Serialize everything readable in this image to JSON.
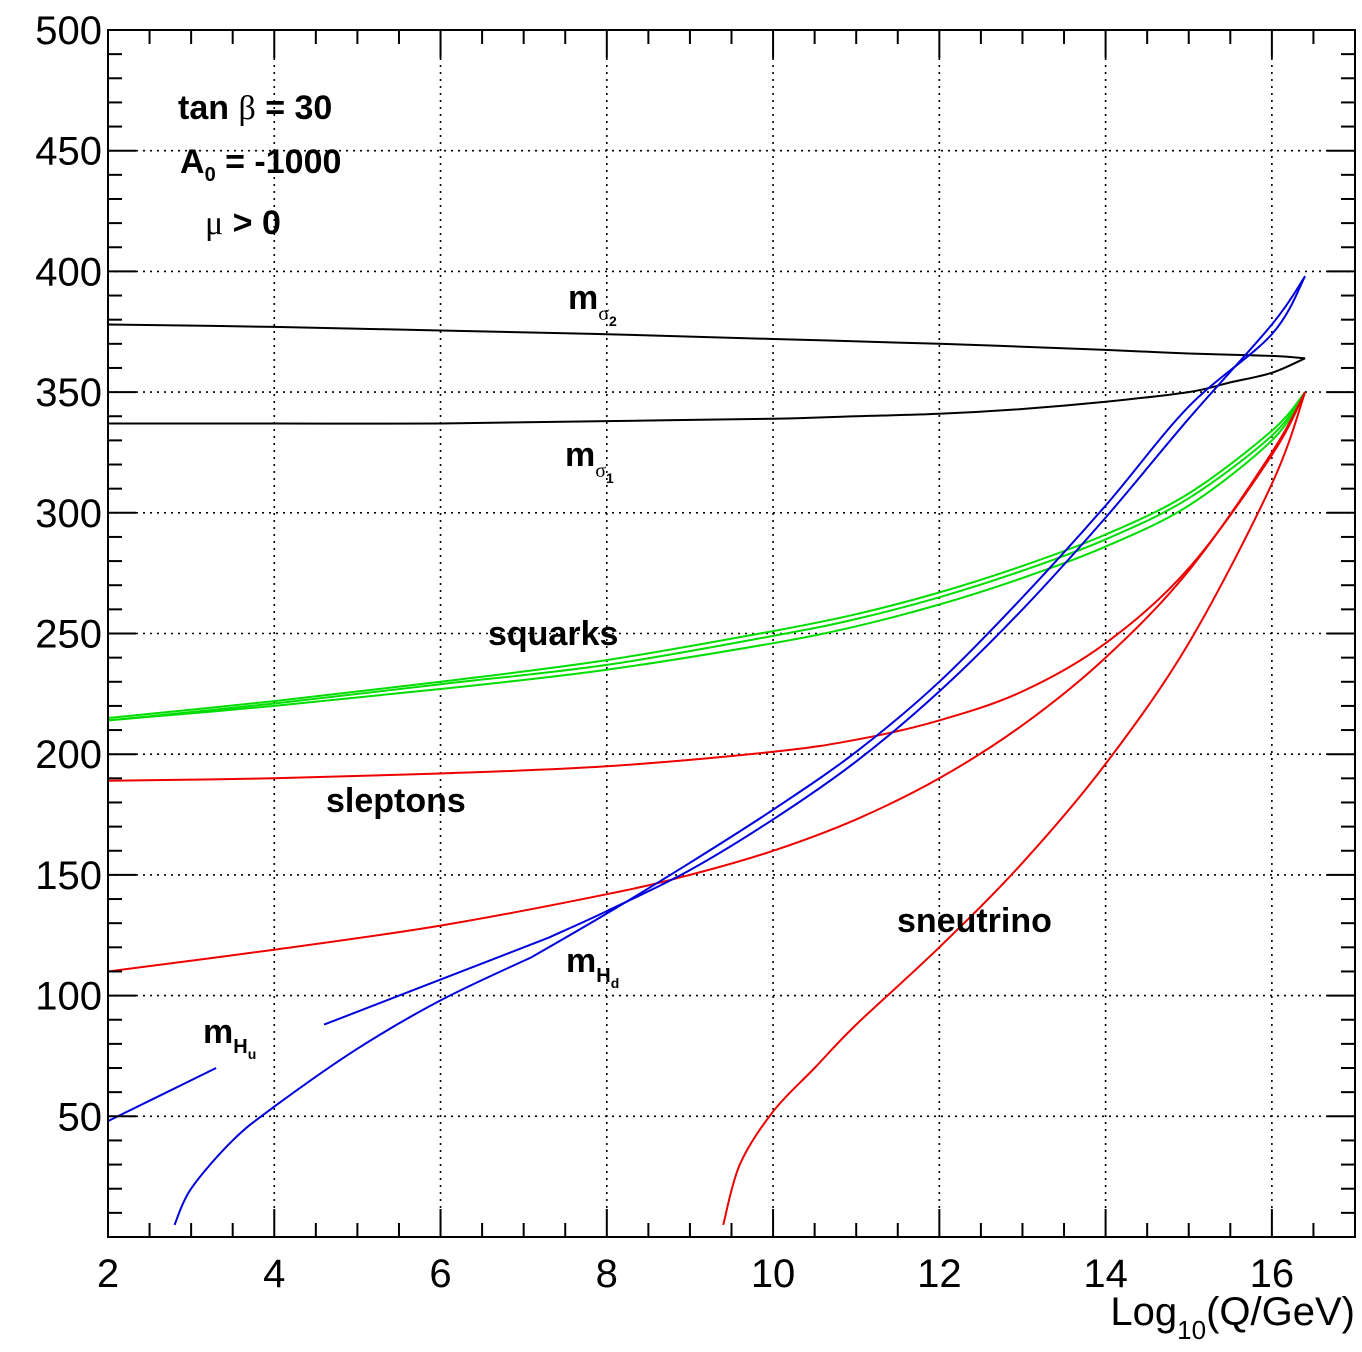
{
  "chart_data": {
    "type": "line",
    "title": "",
    "xlabel": "Log",
    "xlabel_sub": "10",
    "xlabel_tail": "(Q/GeV)",
    "ylabel": "",
    "xlim": [
      2,
      17
    ],
    "ylim": [
      0,
      500
    ],
    "x_ticks": [
      2,
      4,
      6,
      8,
      10,
      12,
      14,
      16
    ],
    "y_ticks": [
      50,
      100,
      150,
      200,
      250,
      300,
      350,
      400,
      450,
      500
    ],
    "grid": true,
    "params": {
      "line1_a": "tan ",
      "line1_beta": "β",
      "line1_b": " = 30",
      "line2_a": "A",
      "line2_sub": "0",
      "line2_b": " = -1000",
      "line3_mu": "μ",
      "line3_b": " > 0"
    },
    "labels": {
      "m": "m",
      "sigma": "σ",
      "sub2": "2",
      "sub1": "1",
      "H": "H",
      "u": "u",
      "d": "d",
      "squarks": "squarks",
      "sleptons": "sleptons",
      "sneutrino": "sneutrino"
    },
    "colors": {
      "sigma": "#000000",
      "squarks": "#00dd00",
      "sleptons": "#ee0000",
      "higgs": "#0000dd"
    },
    "series": [
      {
        "group": "sigma",
        "x": [
          2,
          4,
          6,
          8,
          10,
          12,
          14,
          15,
          16,
          16.4
        ],
        "y": [
          378,
          377,
          375.5,
          374,
          372,
          370,
          367.5,
          366,
          365,
          364
        ]
      },
      {
        "group": "sigma",
        "x": [
          2,
          4,
          6,
          8,
          10,
          11,
          12,
          13,
          14,
          15,
          15.5,
          16,
          16.4
        ],
        "y": [
          337,
          337,
          337,
          338,
          339,
          340,
          341,
          343,
          346,
          350,
          354,
          358,
          364
        ]
      },
      {
        "group": "squarks",
        "x": [
          2,
          4,
          6,
          8,
          10,
          11,
          12,
          13,
          14,
          15,
          16,
          16.4
        ],
        "y": [
          214,
          220,
          227,
          235,
          246,
          253,
          262,
          273,
          286,
          303,
          330,
          350
        ]
      },
      {
        "group": "squarks",
        "x": [
          2,
          4,
          6,
          8,
          10,
          11,
          12,
          13,
          14,
          15,
          16,
          16.4
        ],
        "y": [
          214,
          221,
          229,
          237,
          249,
          256,
          265,
          276,
          289,
          306,
          332,
          350
        ]
      },
      {
        "group": "squarks",
        "x": [
          2,
          4,
          6,
          8,
          10,
          11,
          12,
          13,
          14,
          15,
          16,
          16.4
        ],
        "y": [
          215,
          222,
          230,
          239,
          251,
          258,
          267,
          278,
          291,
          308,
          334,
          350
        ]
      },
      {
        "group": "sleptons",
        "x": [
          2,
          4,
          6,
          8,
          10,
          11,
          12,
          13,
          14,
          15,
          16,
          16.4
        ],
        "y": [
          189,
          190,
          192,
          195,
          201,
          206,
          214,
          226,
          246,
          277,
          324,
          350
        ]
      },
      {
        "group": "sleptons",
        "x": [
          2,
          4,
          6,
          8,
          9,
          10,
          11,
          12,
          13,
          14,
          15,
          16,
          16.4
        ],
        "y": [
          110,
          119,
          129,
          142,
          150,
          160,
          173,
          190,
          212,
          240,
          276,
          325,
          350
        ]
      },
      {
        "group": "sleptons",
        "x": [
          9.4,
          9.6,
          10,
          10.5,
          11,
          12,
          13,
          14,
          15,
          16,
          16.4
        ],
        "y": [
          5,
          30,
          52,
          70,
          88,
          120,
          155,
          196,
          246,
          312,
          350
        ]
      },
      {
        "group": "higgs",
        "x": [
          2,
          3.3
        ],
        "y": [
          48,
          70
        ]
      },
      {
        "group": "higgs",
        "x": [
          4.6,
          7.3
        ],
        "y": [
          88,
          124
        ]
      },
      {
        "group": "higgs",
        "x": [
          7.3,
          8,
          9,
          10,
          11,
          12,
          13,
          14,
          15,
          16,
          16.4
        ],
        "y": [
          124,
          135,
          152,
          173,
          197,
          226,
          260,
          298,
          339,
          378,
          398
        ]
      },
      {
        "group": "higgs",
        "x": [
          2.8,
          3,
          3.5,
          4,
          5,
          6,
          7.1
        ],
        "y": [
          5,
          20,
          40,
          54,
          78,
          98,
          116
        ]
      },
      {
        "group": "higgs",
        "x": [
          7.1,
          8,
          9,
          10,
          11,
          12,
          13,
          14,
          15,
          16,
          16.4
        ],
        "y": [
          116,
          134,
          155,
          177,
          201,
          230,
          265,
          303,
          344,
          374,
          398
        ]
      }
    ]
  }
}
